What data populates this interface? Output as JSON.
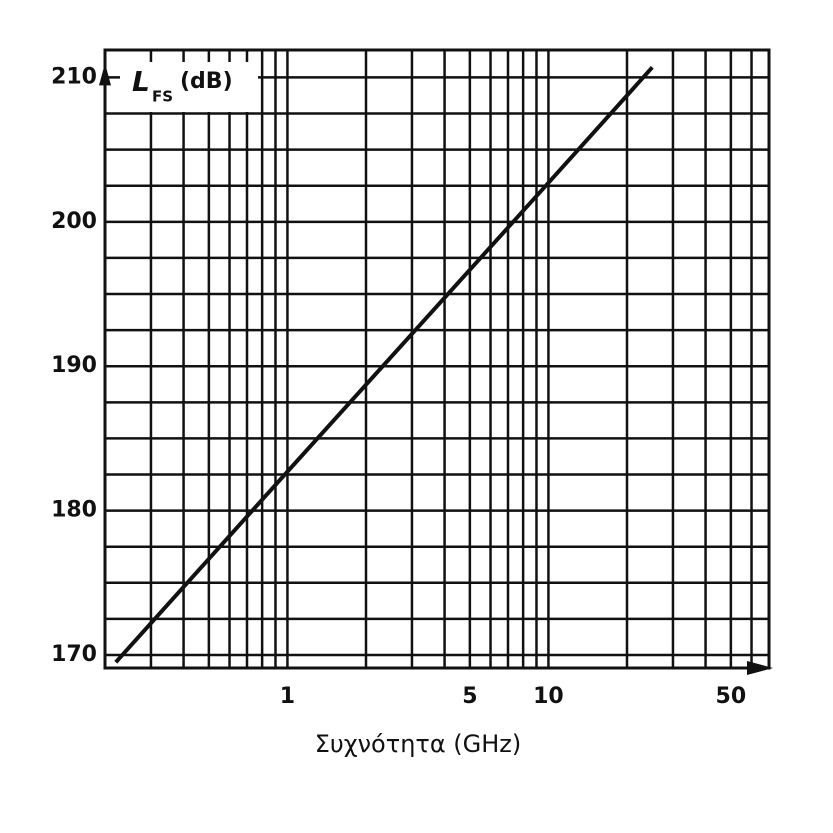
{
  "chart_data": {
    "type": "line",
    "y_label": {
      "symbol": "L",
      "subscript": "FS",
      "unit": "(dB)"
    },
    "x_label": "Συχνότητα (GHz)",
    "x": [
      0.22,
      1,
      10,
      25
    ],
    "series": [
      {
        "name": "L_FS",
        "color": "#111111",
        "values": [
          169.5,
          182.7,
          202.7,
          210.7
        ]
      }
    ],
    "xlog": true,
    "xlim": [
      0.2,
      70
    ],
    "xticks": [
      1,
      5,
      10,
      50
    ],
    "x_minor_ticks": [
      0.3,
      0.4,
      0.5,
      0.6,
      0.7,
      0.8,
      0.9,
      2,
      3,
      4,
      6,
      7,
      8,
      9,
      20,
      30,
      40,
      60
    ],
    "ylim": [
      169.1,
      211.9
    ],
    "yticks": [
      170,
      180,
      190,
      200,
      210
    ],
    "y_minor_ticks": [
      172.5,
      175,
      177.5,
      182.5,
      185,
      187.5,
      192.5,
      195,
      197.5,
      202.5,
      205,
      207.5
    ],
    "grid": true
  }
}
